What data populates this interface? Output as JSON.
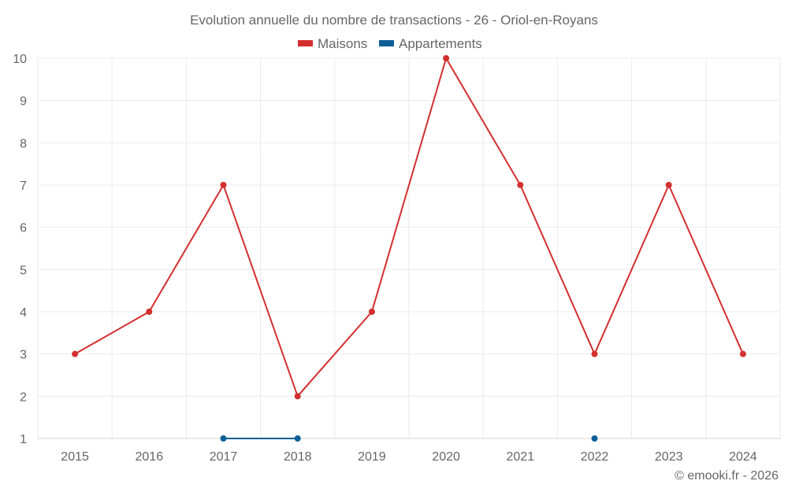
{
  "chart_data": {
    "type": "line",
    "title": "Evolution annuelle du nombre de transactions - 26 - Oriol-en-Royans",
    "categories": [
      "2015",
      "2016",
      "2017",
      "2018",
      "2019",
      "2020",
      "2021",
      "2022",
      "2023",
      "2024"
    ],
    "ylim": [
      1,
      10
    ],
    "yticks": [
      "1",
      "2",
      "3",
      "4",
      "5",
      "6",
      "7",
      "8",
      "9",
      "10"
    ],
    "grid": true,
    "legend_position": "top-center",
    "series": [
      {
        "name": "Maisons",
        "color": "#d32f2f",
        "values": [
          3,
          4,
          7,
          2,
          4,
          10,
          7,
          3,
          7,
          3
        ]
      },
      {
        "name": "Appartements",
        "color": "#0d5f96",
        "values": [
          null,
          null,
          1,
          1,
          null,
          null,
          null,
          1,
          null,
          null
        ]
      }
    ],
    "xlabel": "",
    "ylabel": ""
  },
  "credit": "© emooki.fr - 2026"
}
